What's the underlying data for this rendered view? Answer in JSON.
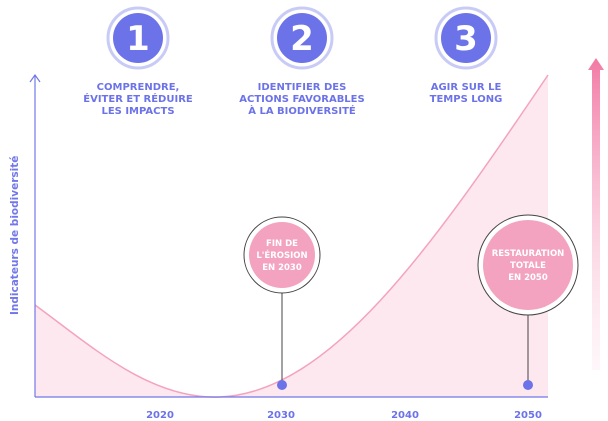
{
  "steps": [
    {
      "number": "1",
      "lines": [
        "COMPRENDRE,",
        "ÉVITER ET RÉDUIRE",
        "LES IMPACTS"
      ]
    },
    {
      "number": "2",
      "lines": [
        "IDENTIFIER DES",
        "ACTIONS FAVORABLES",
        "À LA BIODIVERSITÉ"
      ]
    },
    {
      "number": "3",
      "lines": [
        "AGIR SUR LE",
        "TEMPS LONG"
      ]
    }
  ],
  "y_axis_label": "Indicateurs de biodiversité",
  "x_axis_labels": [
    "2020",
    "2030",
    "2040",
    "2050"
  ],
  "callouts": [
    {
      "lines": [
        "FIN DE",
        "L'ÉROSION",
        "EN 2030"
      ]
    },
    {
      "lines": [
        "RESTAURATION",
        "TOTALE",
        "EN 2050"
      ]
    }
  ]
}
